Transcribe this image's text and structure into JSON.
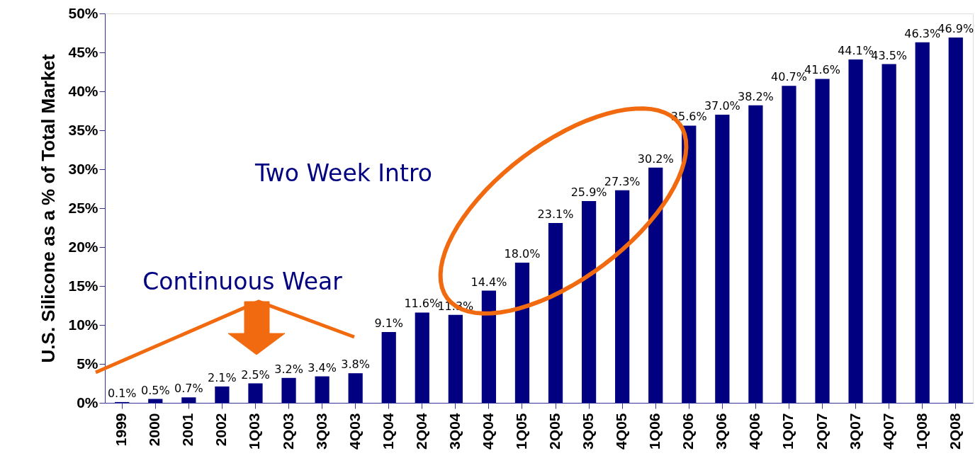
{
  "chart_data": {
    "type": "bar",
    "ylabel": "U.S. Silicone as a % of Total Market",
    "categories": [
      "1999",
      "2000",
      "2001",
      "2002",
      "1Q03",
      "2Q03",
      "3Q03",
      "4Q03",
      "1Q04",
      "2Q04",
      "3Q04",
      "4Q04",
      "1Q05",
      "2Q05",
      "3Q05",
      "4Q05",
      "1Q06",
      "2Q06",
      "3Q06",
      "4Q06",
      "1Q07",
      "2Q07",
      "3Q07",
      "4Q07",
      "1Q08",
      "2Q08"
    ],
    "values": [
      0.1,
      0.5,
      0.7,
      2.1,
      2.5,
      3.2,
      3.4,
      3.8,
      9.1,
      11.6,
      11.3,
      14.4,
      18.0,
      23.1,
      25.9,
      27.3,
      30.2,
      35.6,
      37.0,
      38.2,
      40.7,
      41.6,
      44.1,
      43.5,
      46.3,
      46.9
    ],
    "value_labels": [
      "0.1%",
      "0.5%",
      "0.7%",
      "2.1%",
      "2.5%",
      "3.2%",
      "3.4%",
      "3.8%",
      "9.1%",
      "11.6%",
      "11.3%",
      "14.4%",
      "18.0%",
      "23.1%",
      "25.9%",
      "27.3%",
      "30.2%",
      "35.6%",
      "37.0%",
      "38.2%",
      "40.7%",
      "41.6%",
      "44.1%",
      "43.5%",
      "46.3%",
      "46.9%"
    ],
    "color": "#000080",
    "ylim": [
      0,
      50
    ],
    "yticks": [
      {
        "value": 0,
        "label": "0%"
      },
      {
        "value": 5,
        "label": "5%"
      },
      {
        "value": 10,
        "label": "10%"
      },
      {
        "value": 15,
        "label": "15%"
      },
      {
        "value": 20,
        "label": "20%"
      },
      {
        "value": 25,
        "label": "25%"
      },
      {
        "value": 30,
        "label": "30%"
      },
      {
        "value": 35,
        "label": "35%"
      },
      {
        "value": 40,
        "label": "40%"
      },
      {
        "value": 45,
        "label": "45%"
      },
      {
        "value": 50,
        "label": "50%"
      }
    ],
    "grid": false,
    "annotations": [
      "Two Week Intro",
      "Continuous Wear"
    ]
  }
}
